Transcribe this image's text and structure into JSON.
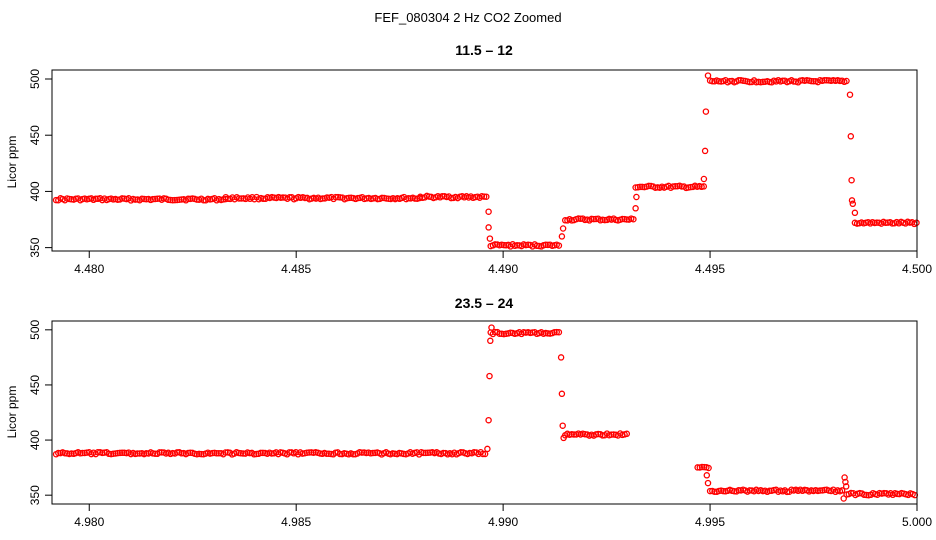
{
  "figure_title": "FEF_080304  2 Hz CO2 Zoomed",
  "chart_data": [
    {
      "type": "scatter",
      "title": "11.5 – 12",
      "xlabel": "",
      "ylabel": "Licor ppm",
      "xlim": [
        4.4791,
        4.5
      ],
      "ylim": [
        347,
        508
      ],
      "x_ticks": [
        4.48,
        4.485,
        4.49,
        4.495,
        4.5
      ],
      "x_tick_labels": [
        "4.480",
        "4.485",
        "4.490",
        "4.495",
        "4.500"
      ],
      "y_ticks": [
        350,
        400,
        450,
        500
      ],
      "y_tick_labels": [
        "350",
        "400",
        "450",
        "500"
      ],
      "marker": "open-circle",
      "color": "#ff0000",
      "grid": false,
      "segments": [
        {
          "x_start": 4.4792,
          "x_end": 4.4833,
          "y": 393
        },
        {
          "x_start": 4.4833,
          "x_end": 4.488,
          "y": 394
        },
        {
          "x_start": 4.488,
          "x_end": 4.4896,
          "y": 395
        },
        {
          "x_start": 4.4897,
          "x_end": 4.4914,
          "y": 352
        },
        {
          "x_start": 4.4915,
          "x_end": 4.4932,
          "y": 375
        },
        {
          "x_start": 4.4932,
          "x_end": 4.4949,
          "y": 404
        },
        {
          "x_start": 4.495,
          "x_end": 4.4983,
          "y": 498
        },
        {
          "x_start": 4.4985,
          "x_end": 4.5,
          "y": 372
        }
      ],
      "transition_points": [
        {
          "x": 4.48965,
          "y": 382
        },
        {
          "x": 4.48965,
          "y": 368
        },
        {
          "x": 4.48968,
          "y": 358
        },
        {
          "x": 4.49142,
          "y": 360
        },
        {
          "x": 4.49145,
          "y": 367
        },
        {
          "x": 4.4932,
          "y": 385
        },
        {
          "x": 4.49322,
          "y": 395
        },
        {
          "x": 4.49485,
          "y": 411
        },
        {
          "x": 4.49488,
          "y": 436
        },
        {
          "x": 4.4949,
          "y": 471
        },
        {
          "x": 4.49495,
          "y": 503
        },
        {
          "x": 4.49838,
          "y": 486
        },
        {
          "x": 4.4984,
          "y": 449
        },
        {
          "x": 4.49842,
          "y": 410
        },
        {
          "x": 4.49843,
          "y": 392
        },
        {
          "x": 4.49845,
          "y": 389
        },
        {
          "x": 4.4985,
          "y": 381
        }
      ]
    },
    {
      "type": "scatter",
      "title": "23.5 – 24",
      "xlabel": "",
      "ylabel": "Licor ppm",
      "xlim": [
        4.9791,
        5.0
      ],
      "ylim": [
        342,
        508
      ],
      "x_ticks": [
        4.98,
        4.985,
        4.99,
        4.995,
        5.0
      ],
      "x_tick_labels": [
        "4.980",
        "4.985",
        "4.990",
        "4.995",
        "5.000"
      ],
      "y_ticks": [
        350,
        400,
        450,
        500
      ],
      "y_tick_labels": [
        "350",
        "400",
        "450",
        "500"
      ],
      "marker": "open-circle",
      "color": "#ff0000",
      "grid": false,
      "segments": [
        {
          "x_start": 4.9792,
          "x_end": 4.9896,
          "y": 388
        },
        {
          "x_start": 4.9897,
          "x_end": 4.9914,
          "y": 497
        },
        {
          "x_start": 4.9915,
          "x_end": 4.993,
          "y": 405
        },
        {
          "x_start": 4.9947,
          "x_end": 4.995,
          "y": 375
        },
        {
          "x_start": 4.995,
          "x_end": 4.9982,
          "y": 354
        },
        {
          "x_start": 4.9983,
          "x_end": 5.0,
          "y": 351
        }
      ],
      "transition_points": [
        {
          "x": 4.98962,
          "y": 392
        },
        {
          "x": 4.98965,
          "y": 418
        },
        {
          "x": 4.98967,
          "y": 458
        },
        {
          "x": 4.98969,
          "y": 490
        },
        {
          "x": 4.98972,
          "y": 502
        },
        {
          "x": 4.9914,
          "y": 475
        },
        {
          "x": 4.99142,
          "y": 442
        },
        {
          "x": 4.99144,
          "y": 413
        },
        {
          "x": 4.99146,
          "y": 402
        },
        {
          "x": 4.99492,
          "y": 368
        },
        {
          "x": 4.99495,
          "y": 361
        },
        {
          "x": 4.99825,
          "y": 366
        },
        {
          "x": 4.99827,
          "y": 362
        },
        {
          "x": 4.99829,
          "y": 358
        },
        {
          "x": 4.99823,
          "y": 347
        }
      ]
    }
  ]
}
